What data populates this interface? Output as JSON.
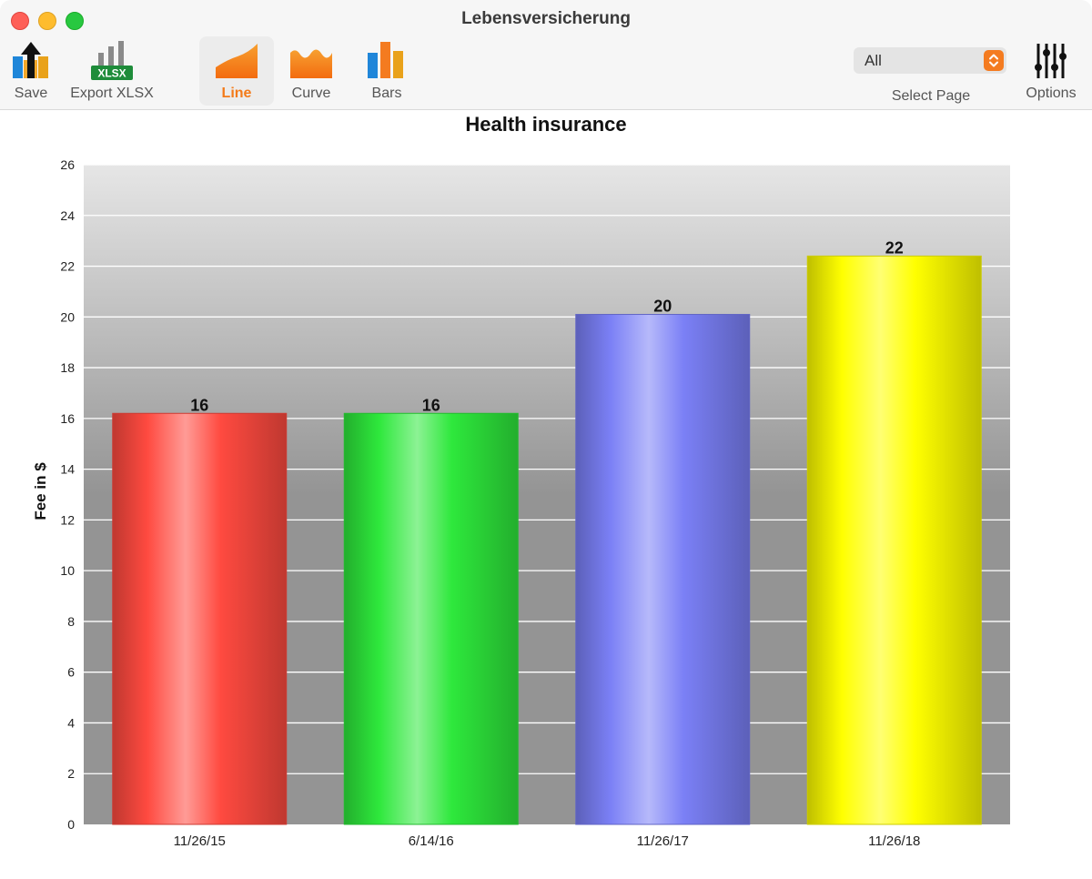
{
  "window": {
    "title": "Lebensversicherung"
  },
  "toolbar": {
    "save_label": "Save",
    "export_label": "Export XLSX",
    "export_badge": "XLSX",
    "line_label": "Line",
    "curve_label": "Curve",
    "bars_label": "Bars",
    "select_page_value": "All",
    "select_page_label": "Select Page",
    "options_label": "Options",
    "active_tool": "Line",
    "accent_color": "#f37b1a"
  },
  "chart_data": {
    "type": "bar",
    "title": "Health insurance",
    "ylabel": "Fee in $",
    "xlabel": "",
    "categories": [
      "11/26/15",
      "6/14/16",
      "11/26/17",
      "11/26/18"
    ],
    "values": [
      16.2,
      16.2,
      20.1,
      22.4
    ],
    "value_labels": [
      "16",
      "16",
      "20",
      "22"
    ],
    "bar_colors": [
      "#ff4a40",
      "#2ee83c",
      "#7b80f6",
      "#ffff00"
    ],
    "ylim": [
      0,
      26
    ],
    "yticks": [
      0,
      2,
      4,
      6,
      8,
      10,
      12,
      14,
      16,
      18,
      20,
      22,
      24,
      26
    ],
    "grid": true,
    "legend": "none"
  }
}
